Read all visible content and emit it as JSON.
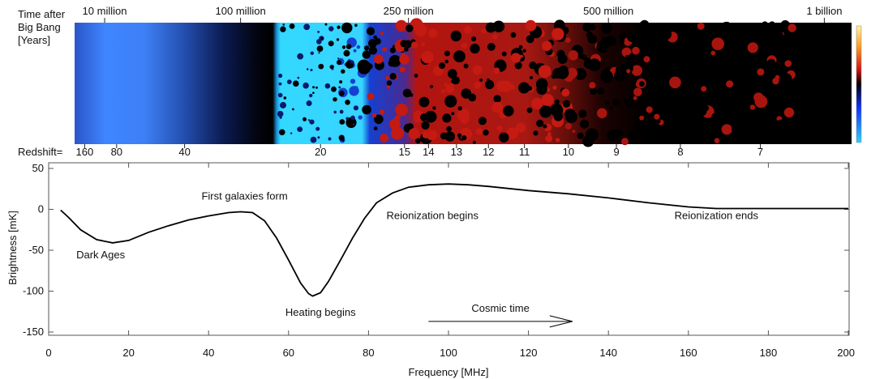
{
  "header": {
    "time_label_line1": "Time after",
    "time_label_line2": "Big Bang",
    "time_label_line3": "[Years]",
    "redshift_label": "Redshift="
  },
  "time_ticks": [
    {
      "label": "10 million",
      "frequency_mhz": 14
    },
    {
      "label": "100 million",
      "frequency_mhz": 48
    },
    {
      "label": "250 million",
      "frequency_mhz": 90
    },
    {
      "label": "500 million",
      "frequency_mhz": 140
    },
    {
      "label": "1 billion",
      "frequency_mhz": 194
    }
  ],
  "redshift_ticks": [
    {
      "label": "160",
      "frequency_mhz": 9
    },
    {
      "label": "80",
      "frequency_mhz": 17
    },
    {
      "label": "40",
      "frequency_mhz": 34
    },
    {
      "label": "20",
      "frequency_mhz": 68
    },
    {
      "label": "15",
      "frequency_mhz": 89
    },
    {
      "label": "14",
      "frequency_mhz": 95
    },
    {
      "label": "13",
      "frequency_mhz": 102
    },
    {
      "label": "12",
      "frequency_mhz": 110
    },
    {
      "label": "11",
      "frequency_mhz": 119
    },
    {
      "label": "10",
      "frequency_mhz": 130
    },
    {
      "label": "9",
      "frequency_mhz": 142
    },
    {
      "label": "8",
      "frequency_mhz": 158
    },
    {
      "label": "7",
      "frequency_mhz": 178
    }
  ],
  "colorbar": {
    "colors": [
      "#fff3a0",
      "#ff9a20",
      "#d01010",
      "#000000",
      "#1030ff",
      "#2fd0ff"
    ]
  },
  "chart_data": {
    "type": "line",
    "title": "",
    "xlabel": "Frequency [MHz]",
    "ylabel": "Brightness [mK]",
    "xlim": [
      0,
      200
    ],
    "ylim": [
      -155,
      55
    ],
    "x_ticks": [
      0,
      20,
      40,
      60,
      80,
      100,
      120,
      140,
      160,
      180,
      200
    ],
    "y_ticks": [
      50,
      0,
      -50,
      -100,
      -150
    ],
    "series": [
      {
        "values_xy": [
          [
            3,
            -1
          ],
          [
            5,
            -10
          ],
          [
            8,
            -25
          ],
          [
            12,
            -37
          ],
          [
            16,
            -41
          ],
          [
            20,
            -38
          ],
          [
            25,
            -28
          ],
          [
            30,
            -20
          ],
          [
            35,
            -13
          ],
          [
            40,
            -8
          ],
          [
            45,
            -4
          ],
          [
            48,
            -3
          ],
          [
            51,
            -4
          ],
          [
            54,
            -14
          ],
          [
            57,
            -35
          ],
          [
            60,
            -62
          ],
          [
            63,
            -90
          ],
          [
            65,
            -103
          ],
          [
            66,
            -106
          ],
          [
            68,
            -102
          ],
          [
            70,
            -88
          ],
          [
            73,
            -62
          ],
          [
            76,
            -35
          ],
          [
            79,
            -11
          ],
          [
            82,
            8
          ],
          [
            86,
            20
          ],
          [
            90,
            27
          ],
          [
            95,
            30
          ],
          [
            100,
            31
          ],
          [
            105,
            30
          ],
          [
            110,
            28
          ],
          [
            120,
            23
          ],
          [
            130,
            19
          ],
          [
            140,
            14
          ],
          [
            150,
            8
          ],
          [
            160,
            3
          ],
          [
            167,
            1
          ],
          [
            180,
            1
          ],
          [
            200,
            1
          ]
        ]
      }
    ],
    "annotations": [
      {
        "text": "First galaxies form",
        "x": 49,
        "y": 12
      },
      {
        "text": "Dark Ages",
        "x": 13,
        "y": -60
      },
      {
        "text": "Heating begins",
        "x": 68,
        "y": -130
      },
      {
        "text": "Reionization begins",
        "x": 96,
        "y": -12
      },
      {
        "text": "Reionization ends",
        "x": 167,
        "y": -12
      },
      {
        "text": "Cosmic time",
        "x": 113,
        "y": -125
      }
    ],
    "arrow": {
      "from_x": 95,
      "to_x": 131,
      "y": -137
    }
  }
}
